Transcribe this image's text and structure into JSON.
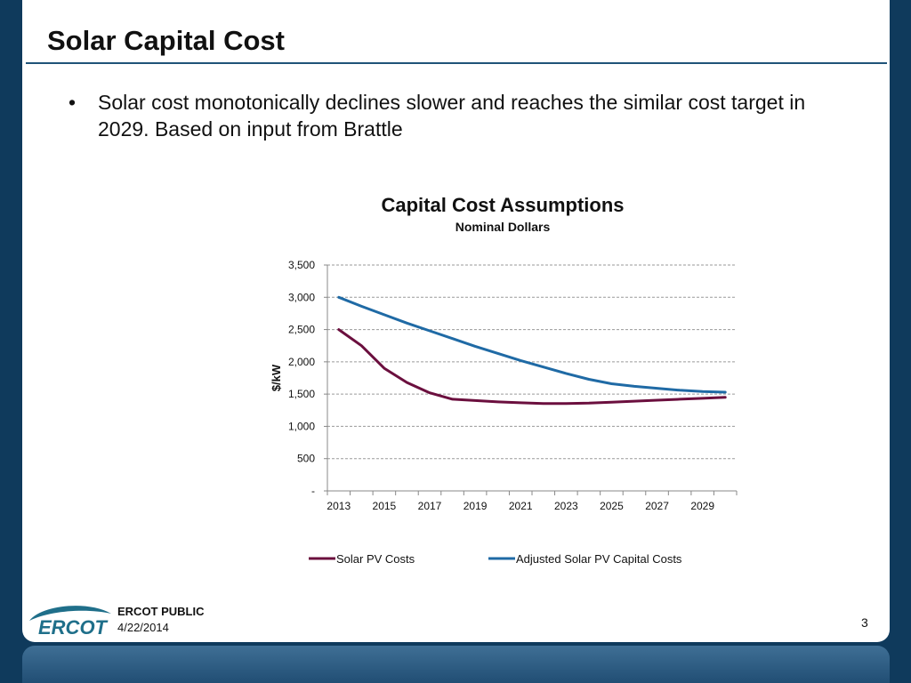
{
  "slide": {
    "title": "Solar Capital Cost",
    "bullet": "Solar cost monotonically declines slower and reaches the similar cost target in 2029. Based on input from Brattle",
    "footer_label": "ERCOT PUBLIC",
    "footer_date": "4/22/2014",
    "page_number": "3",
    "logo_text": "ERCOT"
  },
  "colors": {
    "background": "#0f3a5c",
    "title_rule": "#1f5378",
    "solar_pv": "#6b0f3e",
    "adjusted_solar": "#1f6aa5"
  },
  "chart_data": {
    "type": "line",
    "title": "Capital Cost Assumptions",
    "subtitle": "Nominal Dollars",
    "xlabel": "",
    "ylabel": "$/kW",
    "ylim": [
      0,
      3500
    ],
    "yticks": [
      {
        "value": 0,
        "label": "-"
      },
      {
        "value": 500,
        "label": "500"
      },
      {
        "value": 1000,
        "label": "1,000"
      },
      {
        "value": 1500,
        "label": "1,500"
      },
      {
        "value": 2000,
        "label": "2,000"
      },
      {
        "value": 2500,
        "label": "2,500"
      },
      {
        "value": 3000,
        "label": "3,000"
      },
      {
        "value": 3500,
        "label": "3,500"
      }
    ],
    "x": [
      2013,
      2014,
      2015,
      2016,
      2017,
      2018,
      2019,
      2020,
      2021,
      2022,
      2023,
      2024,
      2025,
      2026,
      2027,
      2028,
      2029,
      2030
    ],
    "xtick_labels": [
      "2013",
      "2015",
      "2017",
      "2019",
      "2021",
      "2023",
      "2025",
      "2027",
      "2029"
    ],
    "grid": true,
    "legend_position": "bottom",
    "series": [
      {
        "name": "Solar PV Costs",
        "color": "#6b0f3e",
        "values": [
          2500,
          2250,
          1900,
          1680,
          1520,
          1420,
          1400,
          1380,
          1365,
          1355,
          1355,
          1360,
          1375,
          1390,
          1405,
          1420,
          1435,
          1450
        ]
      },
      {
        "name": "Adjusted Solar PV Capital Costs",
        "color": "#1f6aa5",
        "values": [
          3000,
          2860,
          2730,
          2600,
          2480,
          2360,
          2240,
          2130,
          2020,
          1920,
          1820,
          1730,
          1660,
          1620,
          1590,
          1560,
          1540,
          1530
        ]
      }
    ]
  }
}
